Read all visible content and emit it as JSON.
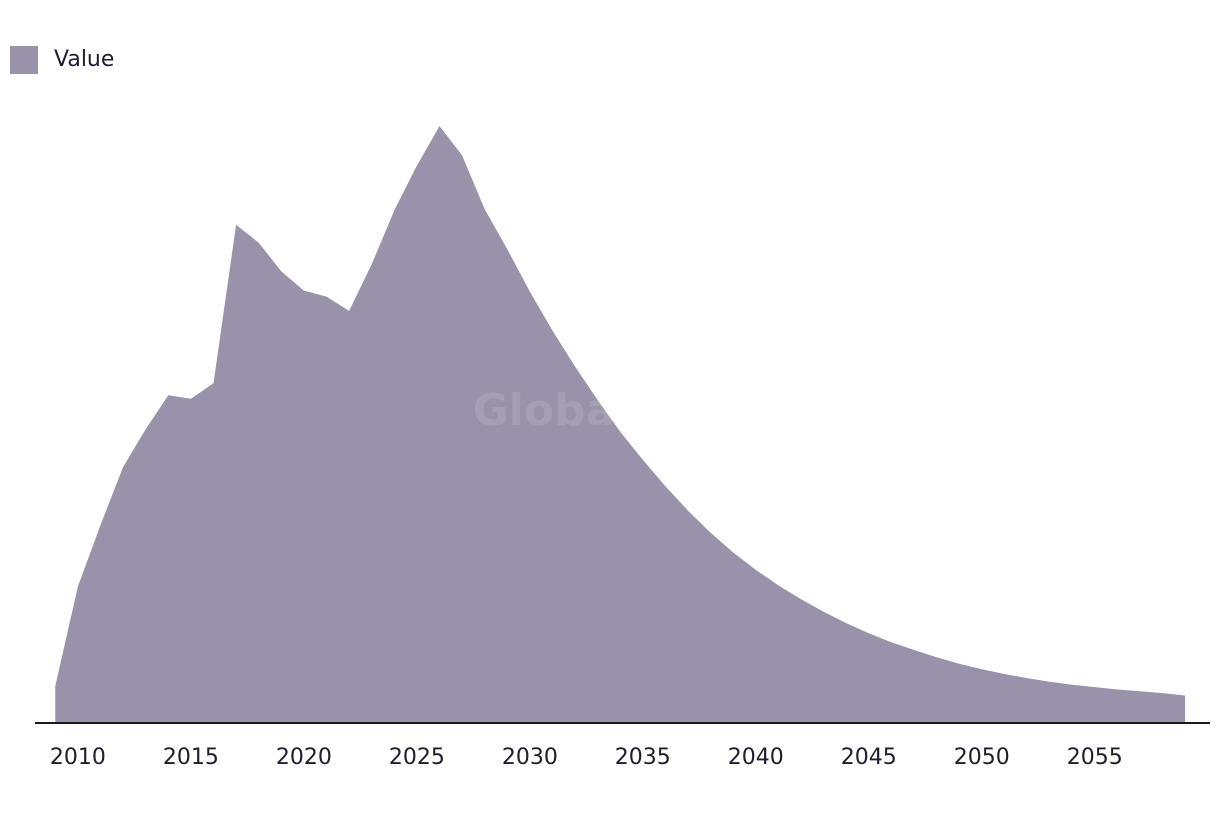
{
  "chart_data": {
    "type": "area",
    "title": "",
    "xlabel": "",
    "ylabel": "",
    "legend": {
      "position": "top-left"
    },
    "series": [
      {
        "name": "Value",
        "color": "#9a91aa",
        "x": [
          2009,
          2010,
          2011,
          2012,
          2013,
          2014,
          2015,
          2016,
          2017,
          2018,
          2019,
          2020,
          2021,
          2022,
          2023,
          2024,
          2025,
          2026,
          2027,
          2028,
          2029,
          2030,
          2031,
          2032,
          2033,
          2034,
          2035,
          2036,
          2037,
          2038,
          2039,
          2040,
          2041,
          2042,
          2043,
          2044,
          2045,
          2046,
          2047,
          2048,
          2049,
          2050,
          2051,
          2052,
          2053,
          2054,
          2055,
          2056,
          2057,
          2058,
          2059
        ],
        "values": [
          6.2,
          22.8,
          33.1,
          42.8,
          49.1,
          54.8,
          54.2,
          56.8,
          83.3,
          80.3,
          75.5,
          72.3,
          71.3,
          68.9,
          76.7,
          85.7,
          93.2,
          99.8,
          94.9,
          85.9,
          79.2,
          72.1,
          65.6,
          59.6,
          54.0,
          48.7,
          44.0,
          39.6,
          35.5,
          31.8,
          28.5,
          25.6,
          23.0,
          20.7,
          18.6,
          16.7,
          15.0,
          13.5,
          12.2,
          11.0,
          9.9,
          9.0,
          8.2,
          7.5,
          6.9,
          6.4,
          6.0,
          5.6,
          5.3,
          5.0,
          4.6
        ]
      }
    ],
    "xticks": [
      "2010",
      "2015",
      "2020",
      "2025",
      "2030",
      "2035",
      "2040",
      "2045",
      "2050",
      "2055"
    ],
    "xlim": [
      2008.1,
      2060.1
    ],
    "ylim": [
      0,
      105
    ],
    "grid": false,
    "watermark": "GlobalData"
  }
}
